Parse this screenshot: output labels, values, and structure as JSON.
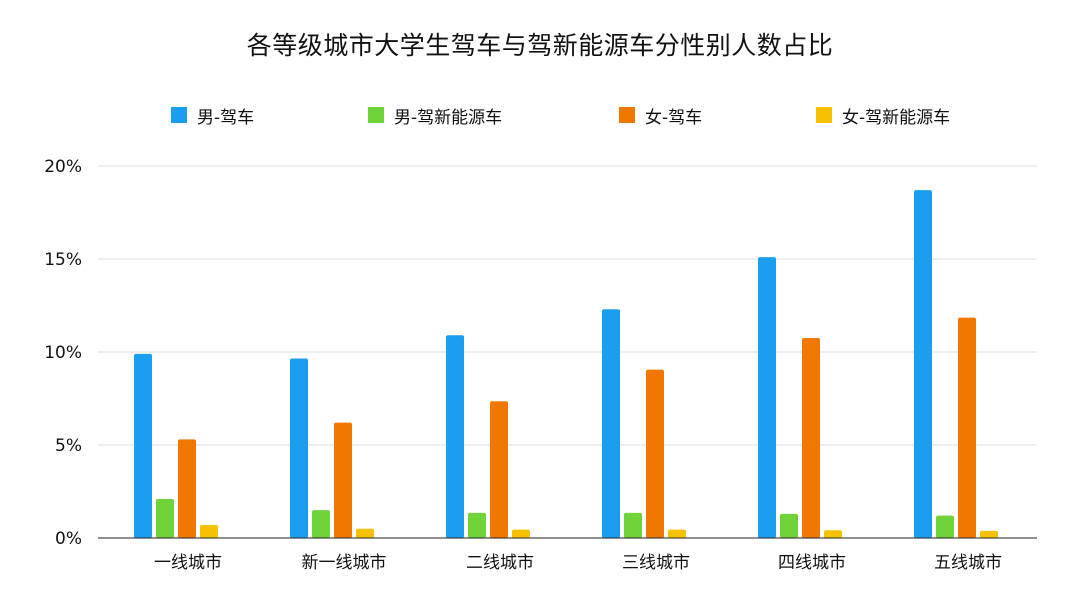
{
  "chart_data": {
    "type": "bar",
    "title": "各等级城市大学生驾车与驾新能源车分性别人数占比",
    "categories": [
      "一线城市",
      "新一线城市",
      "二线城市",
      "三线城市",
      "四线城市",
      "五线城市"
    ],
    "series": [
      {
        "name": "男-驾车",
        "color": "#1a9ff0",
        "values": [
          9.9,
          9.65,
          10.9,
          12.3,
          15.1,
          18.7
        ]
      },
      {
        "name": "男-驾新能源车",
        "color": "#6ed43a",
        "values": [
          2.1,
          1.5,
          1.35,
          1.35,
          1.3,
          1.2
        ]
      },
      {
        "name": "女-驾车",
        "color": "#f07800",
        "values": [
          5.3,
          6.2,
          7.35,
          9.05,
          10.75,
          11.85
        ]
      },
      {
        "name": "女-驾新能源车",
        "color": "#f7c000",
        "values": [
          0.7,
          0.5,
          0.45,
          0.45,
          0.42,
          0.38
        ]
      }
    ],
    "y_ticks": [
      "0%",
      "5%",
      "10%",
      "15%",
      "20%"
    ],
    "y_tick_values": [
      0,
      5,
      10,
      15,
      20
    ],
    "ylim": [
      0,
      20
    ],
    "xlabel": "",
    "ylabel": "",
    "grid": true,
    "legend_position": "top"
  }
}
